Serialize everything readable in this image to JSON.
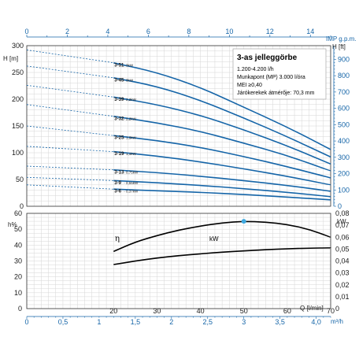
{
  "chart_data": [
    {
      "type": "line",
      "title": "",
      "x_axis_top": {
        "label": "IMP g.p.m.",
        "range": [
          0,
          15
        ],
        "ticks": [
          0,
          2,
          4,
          6,
          8,
          10,
          12,
          14
        ]
      },
      "y_axis_left": {
        "label": "H [m]",
        "range": [
          0,
          300
        ],
        "ticks": [
          0,
          50,
          100,
          150,
          200,
          250,
          300
        ]
      },
      "y_axis_right": {
        "label": "H [ft]",
        "range": [
          0,
          984
        ],
        "ticks": [
          0,
          100,
          200,
          300,
          400,
          500,
          600,
          700,
          800,
          900
        ]
      },
      "info_box": {
        "title": "3-as jelleggörbe",
        "lines": [
          "1.200-4.200 l/h",
          "Munkapont (MP) 3.000 l/óra",
          "MEI ≥0,40",
          "Járókerekek átmérője: 70,3 mm"
        ]
      },
      "series": [
        {
          "name": "3-51",
          "power": "3kW",
          "shutoff_head": 292,
          "x": [
            0,
            20,
            30,
            40,
            50,
            60,
            70
          ],
          "y": [
            292,
            268,
            250,
            222,
            185,
            148,
            106
          ]
        },
        {
          "name": "3-45",
          "power": "3kW",
          "shutoff_head": 262,
          "x": [
            0,
            20,
            30,
            40,
            50,
            60,
            70
          ],
          "y": [
            262,
            240,
            224,
            198,
            165,
            130,
            92
          ]
        },
        {
          "name": "3-39",
          "power": "2,2kW",
          "shutoff_head": 226,
          "x": [
            0,
            20,
            30,
            40,
            50,
            60,
            70
          ],
          "y": [
            226,
            204,
            190,
            170,
            143,
            113,
            79
          ]
        },
        {
          "name": "3-32",
          "power": "2,2kW",
          "shutoff_head": 190,
          "x": [
            0,
            20,
            30,
            40,
            50,
            60,
            70
          ],
          "y": [
            190,
            168,
            156,
            140,
            118,
            95,
            66
          ]
        },
        {
          "name": "3-25",
          "power": "1,5kW",
          "shutoff_head": 150,
          "x": [
            0,
            20,
            30,
            40,
            50,
            60,
            70
          ],
          "y": [
            150,
            132,
            123,
            110,
            93,
            74,
            53
          ]
        },
        {
          "name": "3-19",
          "power": "1,1kW",
          "shutoff_head": 112,
          "x": [
            0,
            20,
            30,
            40,
            50,
            60,
            70
          ],
          "y": [
            112,
            102,
            94,
            83,
            70,
            56,
            40
          ]
        },
        {
          "name": "3-13",
          "power": "0,75kW",
          "shutoff_head": 75,
          "x": [
            0,
            20,
            30,
            40,
            50,
            60,
            70
          ],
          "y": [
            75,
            68,
            63,
            56,
            48,
            39,
            28
          ]
        },
        {
          "name": "3-9",
          "power": "0,55kW",
          "shutoff_head": 54,
          "x": [
            0,
            20,
            30,
            40,
            50,
            60,
            70
          ],
          "y": [
            54,
            48,
            44,
            39,
            33,
            26,
            18
          ]
        },
        {
          "name": "3-6",
          "power": "0,37kW",
          "shutoff_head": 40,
          "x": [
            0,
            20,
            30,
            40,
            50,
            60,
            70
          ],
          "y": [
            40,
            32,
            29,
            26,
            22,
            17,
            12
          ]
        }
      ]
    },
    {
      "type": "line",
      "title": "",
      "x_axis_lpm": {
        "label": "Q [l/min]",
        "range": [
          0,
          70
        ],
        "ticks": [
          20,
          30,
          40,
          50,
          60,
          70
        ]
      },
      "x_axis_m3h": {
        "label": "m³/h",
        "range": [
          0,
          4.2
        ],
        "ticks": [
          "0",
          "0,5",
          "1",
          "1,5",
          "2",
          "2,5",
          "3",
          "3,5",
          "4,0"
        ]
      },
      "y_axis_left": {
        "label": "h%",
        "range": [
          0,
          60
        ],
        "ticks": [
          0,
          10,
          20,
          30,
          40,
          50,
          60
        ]
      },
      "y_axis_right": {
        "label": "kW",
        "range": [
          0,
          0.08
        ],
        "ticks": [
          "0",
          "0,01",
          "0,02",
          "0,03",
          "0,04",
          "0,05",
          "0,06",
          "0,07",
          "0,08"
        ]
      },
      "series": [
        {
          "name": "η",
          "unit": "h%",
          "x": [
            20,
            25,
            30,
            35,
            40,
            45,
            50,
            55,
            60,
            65,
            70
          ],
          "y": [
            36,
            42,
            46,
            49.5,
            52,
            54,
            55,
            54.5,
            53,
            50,
            45
          ]
        },
        {
          "name": "kW",
          "unit": "kW",
          "x": [
            20,
            25,
            30,
            35,
            40,
            45,
            50,
            55,
            60,
            65,
            70
          ],
          "y": [
            0.037,
            0.04,
            0.0425,
            0.0445,
            0.046,
            0.0475,
            0.0485,
            0.0495,
            0.0502,
            0.0508,
            0.051
          ]
        }
      ],
      "operating_point": {
        "x": 50,
        "y": 55
      },
      "colors": {
        "curves": "#1565a8",
        "efficiency": "#000000",
        "marker": "#3fa9e0"
      }
    }
  ]
}
